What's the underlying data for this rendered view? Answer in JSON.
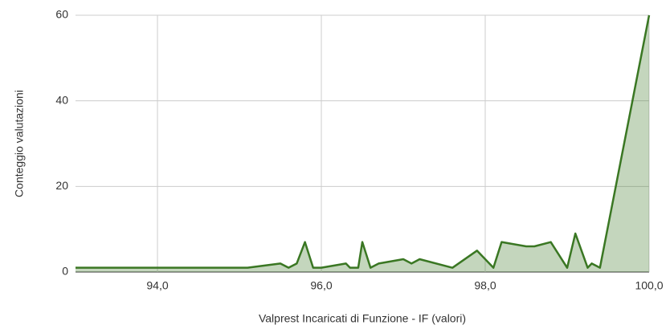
{
  "chart_data": {
    "type": "area",
    "x_label": "Valprest Incaricati di Funzione - IF (valori)",
    "y_label": "Conteggio valutazioni",
    "x": [
      93.0,
      95.1,
      95.5,
      95.6,
      95.7,
      95.8,
      95.9,
      96.0,
      96.3,
      96.35,
      96.45,
      96.5,
      96.6,
      96.7,
      97.0,
      97.1,
      97.2,
      97.6,
      97.9,
      98.1,
      98.2,
      98.5,
      98.6,
      98.8,
      99.0,
      99.1,
      99.25,
      99.3,
      99.4,
      100.0
    ],
    "series": [
      {
        "name": "Conteggio valutazioni",
        "color": "#3a7723",
        "values": [
          1,
          1,
          2,
          1,
          2,
          7,
          1,
          1,
          2,
          1,
          1,
          7,
          1,
          2,
          3,
          2,
          3,
          1,
          5,
          1,
          7,
          6,
          6,
          7,
          1,
          9,
          1,
          2,
          1,
          60
        ]
      }
    ],
    "xlim": [
      93,
      100
    ],
    "xticks": [
      {
        "value": 94,
        "label": "94,0"
      },
      {
        "value": 96,
        "label": "96,0"
      },
      {
        "value": 98,
        "label": "98,0"
      },
      {
        "value": 100,
        "label": "100,0"
      }
    ],
    "ylim": [
      0,
      60
    ],
    "yticks": [
      0,
      20,
      40,
      60
    ],
    "grid": true
  }
}
